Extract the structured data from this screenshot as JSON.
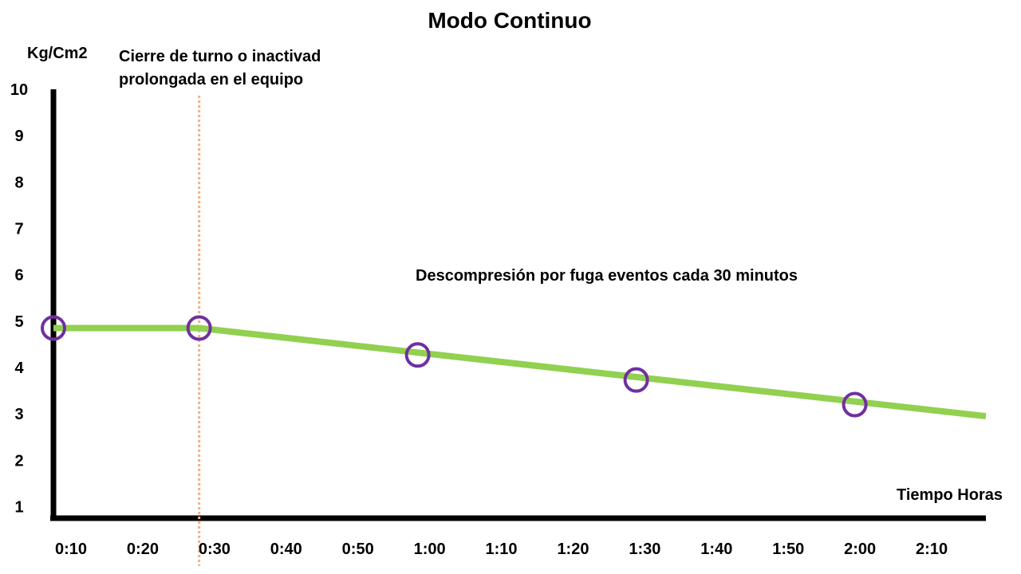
{
  "chart_data": {
    "type": "line",
    "title": "Modo Continuo",
    "ylabel": "Kg/Cm2",
    "xlabel": "Tiempo Horas",
    "categories": [
      "0:10",
      "0:20",
      "0:30",
      "0:40",
      "0:50",
      "1:00",
      "1:10",
      "1:20",
      "1:30",
      "1:40",
      "1:50",
      "2:00",
      "2:10"
    ],
    "y_ticks": [
      1,
      2,
      3,
      4,
      5,
      6,
      7,
      8,
      9,
      10
    ],
    "ylim": [
      0.75,
      10
    ],
    "xlim_minutes": [
      10,
      138
    ],
    "grid": false,
    "line": {
      "x_minutes": [
        10,
        30,
        138
      ],
      "y": [
        4.85,
        4.85,
        2.95
      ],
      "color": "#92d050"
    },
    "markers": {
      "x_minutes": [
        10,
        30,
        60,
        90,
        120
      ],
      "y": [
        4.85,
        4.85,
        4.27,
        3.73,
        3.2
      ],
      "color": "#7030a0"
    },
    "vertical_line": {
      "x_minutes": 30,
      "color": "#f4b183",
      "style": "dotted"
    },
    "annotations": {
      "event_line1": "Cierre de turno o inactivad",
      "event_line2": "prolongada en el equipo",
      "decompression": "Descompresión por fuga eventos cada 30 minutos"
    }
  }
}
